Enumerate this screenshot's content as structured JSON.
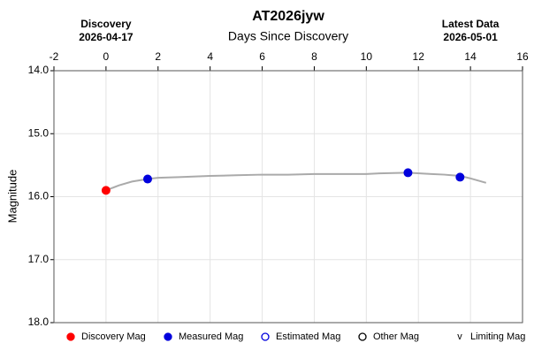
{
  "chart_data": {
    "type": "lightcurve",
    "title": "AT2026jyw",
    "xlabel": "Days Since Discovery",
    "ylabel": "Magnitude",
    "xlim": [
      -2,
      16
    ],
    "xticks": [
      -2,
      0,
      2,
      4,
      6,
      8,
      10,
      12,
      14,
      16
    ],
    "ylim": [
      14.0,
      18.0
    ],
    "y_inverted": true,
    "yticks": [
      {
        "value": 14,
        "label": "14.0"
      },
      {
        "value": 15,
        "label": "15.0"
      },
      {
        "value": 16,
        "label": "16.0"
      },
      {
        "value": 17,
        "label": "17.0"
      },
      {
        "value": 18,
        "label": "18.0"
      }
    ],
    "grid": true,
    "annotations": [
      {
        "x": 0,
        "label": "Discovery",
        "date": "2026-04-17"
      },
      {
        "x": 14,
        "label": "Latest Data",
        "date": "2026-05-01"
      }
    ],
    "series": [
      {
        "style": "line",
        "color": "#aaaaaa",
        "x": [
          0,
          0.5,
          1,
          1.6,
          2,
          2.8,
          4,
          5,
          6,
          7,
          8,
          9,
          10,
          10.5,
          11.6,
          12.5,
          13,
          13.6,
          14,
          14.6
        ],
        "values": [
          15.9,
          15.82,
          15.76,
          15.72,
          15.7,
          15.69,
          15.67,
          15.66,
          15.65,
          15.65,
          15.64,
          15.64,
          15.64,
          15.63,
          15.62,
          15.64,
          15.65,
          15.67,
          15.71,
          15.78
        ]
      },
      {
        "style": "filled",
        "color": "#ff0000",
        "x": [
          0
        ],
        "values": [
          15.9
        ]
      },
      {
        "style": "filled",
        "color": "#0000dd",
        "x": [
          1.6,
          11.6,
          13.6
        ],
        "values": [
          15.72,
          15.62,
          15.69
        ]
      }
    ],
    "legend": [
      {
        "label": "Discovery Mag",
        "symbol": "filled",
        "color": "#ff0000"
      },
      {
        "label": "Measured Mag",
        "symbol": "filled",
        "color": "#0000dd"
      },
      {
        "label": "Estimated Mag",
        "symbol": "hollow",
        "color": "#0000dd"
      },
      {
        "label": "Other Mag",
        "symbol": "hollow",
        "color": "#000000"
      },
      {
        "label": "Limiting Mag",
        "symbol": "v",
        "color": "#000000"
      }
    ]
  }
}
